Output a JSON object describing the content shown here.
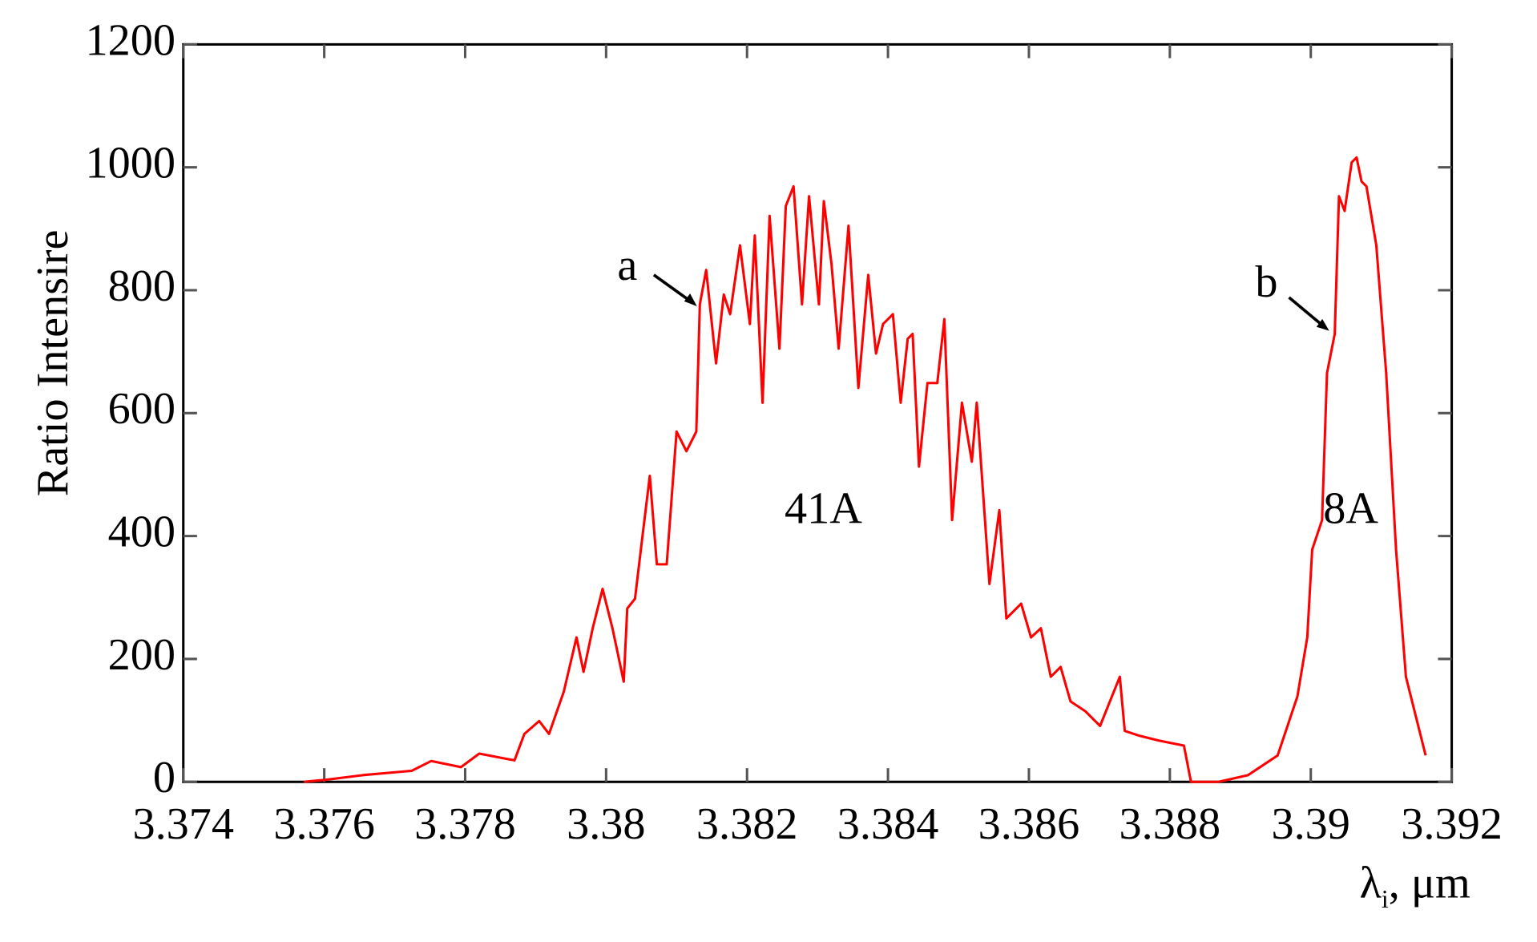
{
  "chart_data": {
    "type": "line",
    "y_label": "Ratio Intensire",
    "x_label": "λ",
    "x_label_sub": "i",
    "x_label_unit": ", μm",
    "annotations": [
      "a",
      "b",
      "41A",
      "8A"
    ],
    "xlim": [
      3.374,
      3.392
    ],
    "xticks": [
      3.374,
      3.376,
      3.378,
      3.38,
      3.382,
      3.384,
      3.386,
      3.388,
      3.39,
      3.392
    ],
    "ylim": [
      0,
      1200
    ],
    "yticks": [
      0,
      200,
      400,
      600,
      800,
      1000,
      1200
    ],
    "series": [
      {
        "color": "#ff0000",
        "x": [
          3.37571,
          3.37599,
          3.37655,
          3.37724,
          3.37752,
          3.37794,
          3.3782,
          3.3787,
          3.37884,
          3.37905,
          3.37919,
          3.3794,
          3.37958,
          3.37968,
          3.37981,
          3.37995,
          3.38009,
          3.38025,
          3.3803,
          3.38041,
          3.38051,
          3.38062,
          3.38072,
          3.38086,
          3.381,
          3.38114,
          3.38128,
          3.38133,
          3.38142,
          3.38156,
          3.38167,
          3.38176,
          3.3819,
          3.38204,
          3.38211,
          3.38222,
          3.38232,
          3.38246,
          3.38255,
          3.38266,
          3.38278,
          3.38288,
          3.38302,
          3.38309,
          3.3832,
          3.3833,
          3.38344,
          3.38358,
          3.38372,
          3.38383,
          3.38393,
          3.38407,
          3.38418,
          3.38428,
          3.38435,
          3.38444,
          3.38456,
          3.3847,
          3.3848,
          3.38491,
          3.38505,
          3.38519,
          3.38526,
          3.38544,
          3.38558,
          3.38568,
          3.38589,
          3.38603,
          3.38617,
          3.38631,
          3.38645,
          3.38659,
          3.3868,
          3.38701,
          3.38729,
          3.38736,
          3.38757,
          3.38785,
          3.3882,
          3.3883,
          3.38869,
          3.38911,
          3.38953,
          3.38981,
          3.38995,
          3.39002,
          3.39016,
          3.39023,
          3.39034,
          3.3904,
          3.39048,
          3.39058,
          3.39065,
          3.39072,
          3.39079,
          3.39093,
          3.39107,
          3.39121,
          3.39135,
          3.39149,
          3.39163
        ],
        "values": [
          0,
          3,
          11,
          18,
          34,
          24,
          46,
          35,
          78,
          99,
          78,
          147,
          235,
          179,
          250,
          314,
          250,
          163,
          282,
          298,
          394,
          498,
          354,
          354,
          570,
          538,
          570,
          777,
          833,
          681,
          793,
          761,
          873,
          745,
          889,
          617,
          921,
          705,
          937,
          969,
          777,
          953,
          777,
          945,
          841,
          705,
          905,
          641,
          825,
          697,
          745,
          761,
          617,
          721,
          729,
          513,
          649,
          649,
          753,
          426,
          617,
          521,
          617,
          322,
          442,
          266,
          290,
          235,
          250,
          171,
          187,
          131,
          115,
          91,
          171,
          83,
          75,
          67,
          59,
          0,
          0,
          11,
          43,
          139,
          235,
          378,
          426,
          665,
          729,
          953,
          929,
          1008,
          1016,
          977,
          969,
          873,
          665,
          378,
          171,
          107,
          43
        ]
      }
    ]
  }
}
